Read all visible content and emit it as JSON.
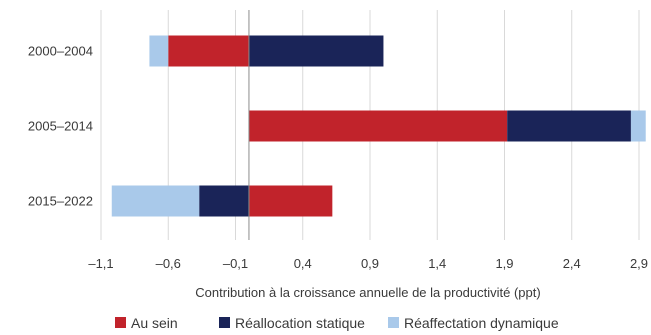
{
  "chart_data": {
    "type": "bar",
    "orientation": "horizontal",
    "stacked": true,
    "categories": [
      "2000–2004",
      "2005–2014",
      "2015–2022"
    ],
    "series": [
      {
        "name": "Au sein",
        "color": "#c1232b",
        "values": [
          -0.6,
          1.92,
          0.62
        ]
      },
      {
        "name": "Réallocation statique",
        "color": "#1a2458",
        "values": [
          1.0,
          0.92,
          -0.37
        ]
      },
      {
        "name": "Réaffectation dynamique",
        "color": "#a9c9ea",
        "values": [
          -0.14,
          0.11,
          -0.65
        ]
      }
    ],
    "xlabel": "Contribution à la croissance annuelle de la productivité (ppt)",
    "xlim": [
      -1.1,
      2.9
    ],
    "xticks": [
      "–1,1",
      "–0,6",
      "–0,1",
      "0,4",
      "0,9",
      "1,4",
      "1,9",
      "2,4",
      "2,9"
    ],
    "xtick_values": [
      -1.1,
      -0.6,
      -0.1,
      0.4,
      0.9,
      1.4,
      1.9,
      2.4,
      2.9
    ],
    "grid": true,
    "legend_position": "bottom"
  }
}
